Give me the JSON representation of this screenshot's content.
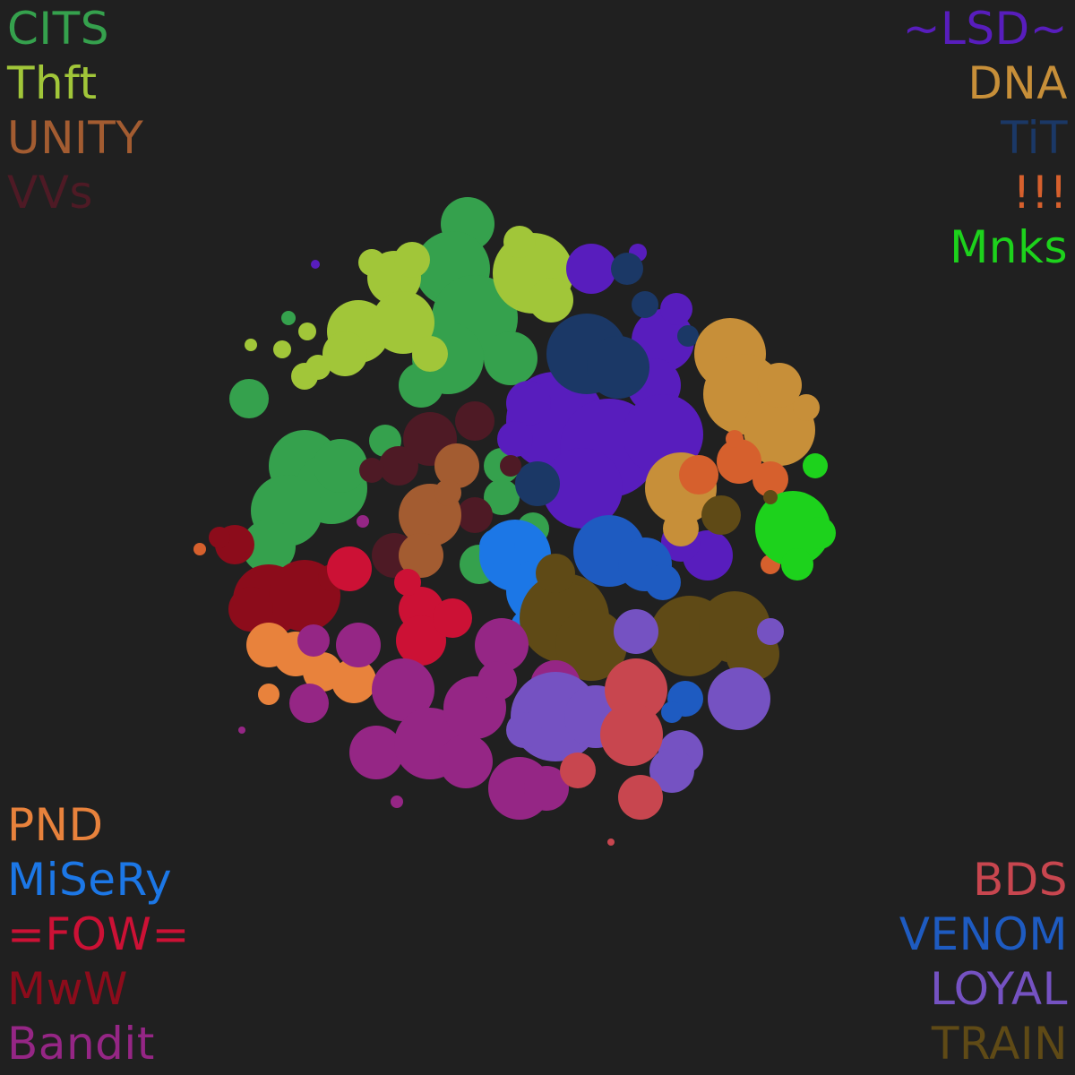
{
  "legend": {
    "top_left": [
      {
        "tag": "CITS",
        "color": "#35a14d"
      },
      {
        "tag": "Thft",
        "color": "#a1c639"
      },
      {
        "tag": "UNITY",
        "color": "#a35c31"
      },
      {
        "tag": "VVs",
        "color": "#4e1a25"
      }
    ],
    "top_right": [
      {
        "tag": "~LSD~",
        "color": "#581dbd"
      },
      {
        "tag": "DNA",
        "color": "#c78f39"
      },
      {
        "tag": "TiT",
        "color": "#1b3866"
      },
      {
        "tag": "!!!",
        "color": "#d6602d"
      },
      {
        "tag": "Mnks",
        "color": "#1dd21c"
      }
    ],
    "bottom_left": [
      {
        "tag": "PND",
        "color": "#e8823c"
      },
      {
        "tag": "MiSeRy",
        "color": "#1c77e6"
      },
      {
        "tag": "=FOW=",
        "color": "#cc1135"
      },
      {
        "tag": "MwW",
        "color": "#8c0c1b"
      },
      {
        "tag": "Bandit",
        "color": "#952685"
      }
    ],
    "bottom_right": [
      {
        "tag": "BDS",
        "color": "#c8464f"
      },
      {
        "tag": "VENOM",
        "color": "#1e5bc1"
      },
      {
        "tag": "LOYAL",
        "color": "#7552c2"
      },
      {
        "tag": "TRAIN",
        "color": "#5f4a16"
      }
    ]
  }
}
